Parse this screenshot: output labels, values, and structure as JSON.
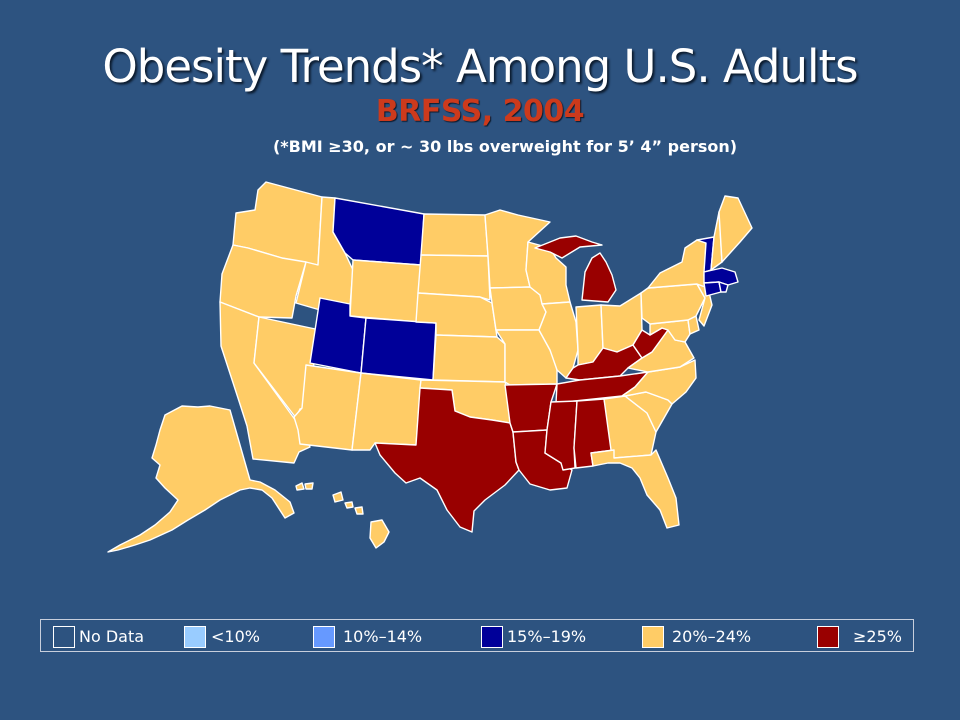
{
  "title": "Obesity Trends* Among U.S. Adults",
  "subtitle": "BRFSS, 2004",
  "note": "(*BMI ≥30, or ~ 30 lbs overweight for 5’ 4” person)",
  "legend": [
    {
      "key": "nodata",
      "label": "No Data",
      "color": "#2d5380"
    },
    {
      "key": "lt10",
      "label": "<10%",
      "color": "#99ccff"
    },
    {
      "key": "10to14",
      "label": "10%–14%",
      "color": "#6699ff"
    },
    {
      "key": "15to19",
      "label": "15%–19%",
      "color": "#000099"
    },
    {
      "key": "20to24",
      "label": "20%–24%",
      "color": "#ffcc66"
    },
    {
      "key": "ge25",
      "label": "≥25%",
      "color": "#990000"
    }
  ],
  "states": {
    "WA": "20to24",
    "OR": "20to24",
    "CA": "20to24",
    "NV": "20to24",
    "ID": "20to24",
    "MT": "15to19",
    "WY": "20to24",
    "UT": "15to19",
    "CO": "15to19",
    "AZ": "20to24",
    "NM": "20to24",
    "ND": "20to24",
    "SD": "20to24",
    "NE": "20to24",
    "KS": "20to24",
    "OK": "20to24",
    "TX": "ge25",
    "MN": "20to24",
    "IA": "20to24",
    "MO": "20to24",
    "AR": "ge25",
    "LA": "ge25",
    "WI": "20to24",
    "IL": "20to24",
    "MI": "ge25",
    "IN": "20to24",
    "OH": "20to24",
    "KY": "ge25",
    "TN": "ge25",
    "MS": "ge25",
    "AL": "ge25",
    "GA": "20to24",
    "FL": "20to24",
    "SC": "20to24",
    "NC": "20to24",
    "VA": "20to24",
    "WV": "ge25",
    "PA": "20to24",
    "NY": "20to24",
    "VT": "15to19",
    "NH": "20to24",
    "ME": "20to24",
    "MA": "15to19",
    "RI": "15to19",
    "CT": "15to19",
    "NJ": "20to24",
    "DE": "20to24",
    "MD": "20to24",
    "AK": "20to24",
    "HI": "20to24"
  }
}
